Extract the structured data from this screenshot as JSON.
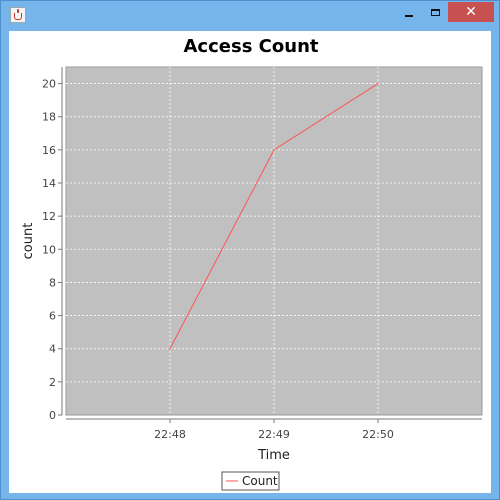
{
  "window": {
    "icon": "java-cup-icon",
    "controls": [
      "minimize-icon",
      "maximize-icon",
      "close-icon"
    ],
    "close_glyph": "✕"
  },
  "chart_data": {
    "type": "line",
    "title": "Access Count",
    "xlabel": "Time",
    "ylabel": "count",
    "x": [
      "22:48",
      "22:49",
      "22:50"
    ],
    "series": [
      {
        "name": "Count",
        "values": [
          4,
          16,
          20
        ],
        "color": "#ff5555"
      }
    ],
    "ylim": [
      0,
      21
    ],
    "yticks": [
      0,
      2,
      4,
      6,
      8,
      10,
      12,
      14,
      16,
      18,
      20
    ],
    "grid": true,
    "plot_background": "#c0c0c0",
    "grid_color": "#ffffff",
    "legend_position": "bottom-center"
  }
}
